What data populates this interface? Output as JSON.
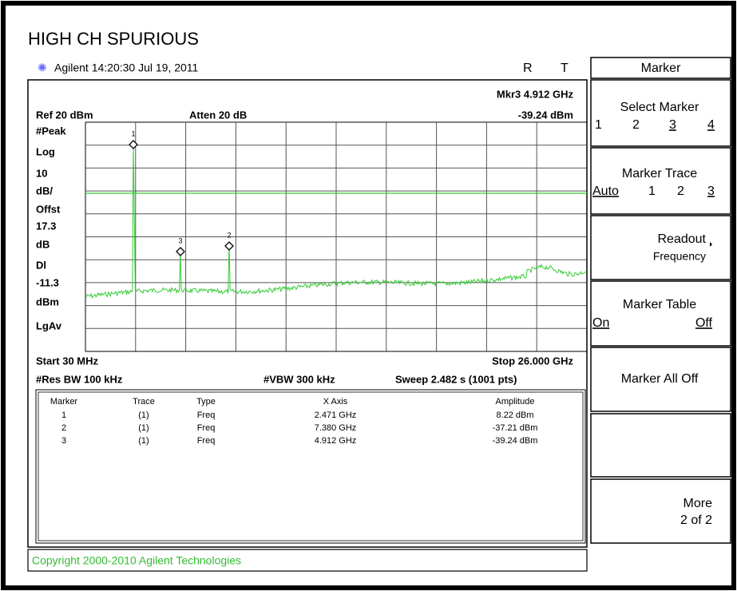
{
  "header": {
    "title": "HIGH CH SPURIOUS",
    "instrument": "Agilent 14:20:30 Jul 19, 2011",
    "status": [
      "R",
      "T"
    ]
  },
  "screen": {
    "marker_readout": "Mkr3 4.912 GHz",
    "ref": "Ref 20 dBm",
    "atten": "Atten 20 dB",
    "marker_amplitude": "-39.24 dBm",
    "left_labels": [
      "#Peak",
      "Log",
      "10",
      "dB/",
      "Offst",
      "17.3",
      "dB",
      "Dl",
      "-11.3",
      "dBm",
      "LgAv"
    ],
    "markers": [
      "1",
      "3",
      "2"
    ],
    "start": "Start 30 MHz",
    "stop": "Stop 26.000 GHz",
    "res_bw": "#Res BW 100 kHz",
    "vbw": "#VBW 300 kHz",
    "sweep": "Sweep 2.482 s (1001 pts)"
  },
  "table": {
    "headers": [
      "Marker",
      "Trace",
      "Type",
      "X Axis",
      "Amplitude"
    ],
    "rows": [
      [
        "1",
        "(1)",
        "Freq",
        "2.471 GHz",
        "8.22 dBm"
      ],
      [
        "2",
        "(1)",
        "Freq",
        "7.380 GHz",
        "-37.21 dBm"
      ],
      [
        "3",
        "(1)",
        "Freq",
        "4.912 GHz",
        "-39.24 dBm"
      ]
    ]
  },
  "softkeys": {
    "menu": "Marker",
    "select_marker": {
      "label": "Select Marker",
      "options": [
        "1",
        "2",
        "3",
        "4"
      ]
    },
    "marker_trace": {
      "label": "Marker Trace",
      "options": [
        "Auto",
        "1",
        "2",
        "3"
      ]
    },
    "readout": {
      "label": "Readout",
      "value": "Frequency"
    },
    "marker_table": {
      "label": "Marker Table",
      "options": [
        "On",
        "Off"
      ]
    },
    "marker_all_off": "Marker All Off",
    "more": {
      "label": "More",
      "page": "2 of 2"
    }
  },
  "copyright": "Copyright 2000-2010 Agilent Technologies"
}
